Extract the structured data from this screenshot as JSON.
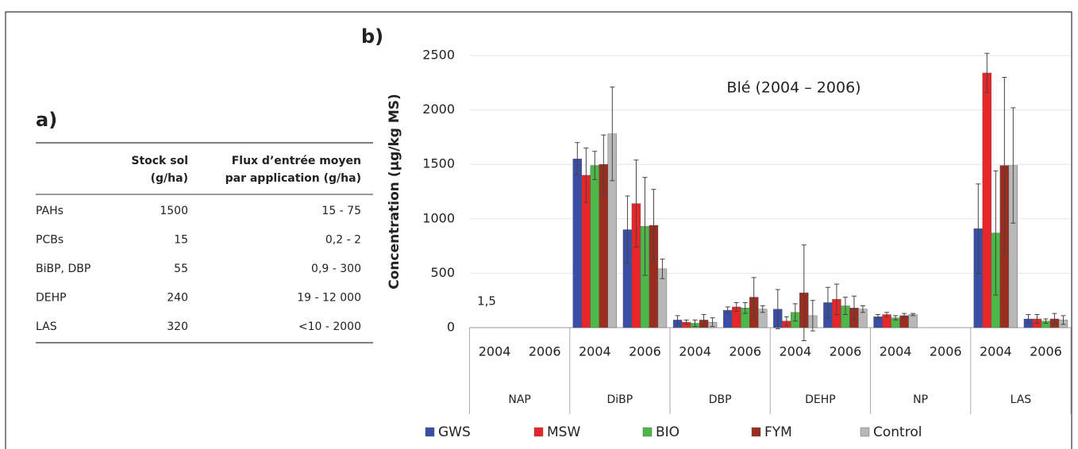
{
  "panel_a": {
    "label": "a)",
    "table": {
      "columns": [
        [
          "Stock sol",
          "(g/ha)"
        ],
        [
          "Flux d’entrée moyen",
          "par application (g/ha)"
        ]
      ],
      "rows": [
        [
          "PAHs",
          "1500",
          "15 - 75"
        ],
        [
          "PCBs",
          "15",
          "0,2 - 2"
        ],
        [
          "BiBP, DBP",
          "55",
          "0,9 - 300"
        ],
        [
          "DEHP",
          "240",
          "19 - 12 000"
        ],
        [
          "LAS",
          "320",
          "<10 - 2000"
        ]
      ]
    }
  },
  "chart_data": {
    "type": "bar",
    "panel_label": "b)",
    "annotation": "Blé (2004 – 2006)",
    "value_note": "1,5",
    "y_label": "Concentration (µg/kg MS)",
    "categories": [
      "2004",
      "2006",
      "2004",
      "2006",
      "2004",
      "2006",
      "2004",
      "2006",
      "2004",
      "2006",
      "2004",
      "2006"
    ],
    "groups": [
      "NAP",
      "DiBP",
      "DBP",
      "DEHP",
      "NP",
      "LAS"
    ],
    "ylim": [
      0,
      2500
    ],
    "yticks": [
      0,
      500,
      1000,
      1500,
      2000,
      2500
    ],
    "grid": true,
    "series": [
      {
        "name": "GWS",
        "color": "#3a4ea6",
        "values": [
          0,
          0,
          1550,
          900,
          70,
          160,
          170,
          230,
          100,
          0,
          910,
          80
        ],
        "errors": [
          0,
          0,
          150,
          310,
          40,
          30,
          180,
          140,
          20,
          0,
          410,
          40
        ]
      },
      {
        "name": "MSW",
        "color": "#e8262a",
        "values": [
          0,
          0,
          1400,
          1140,
          50,
          190,
          60,
          260,
          120,
          0,
          2340,
          80
        ],
        "errors": [
          0,
          0,
          250,
          400,
          20,
          40,
          40,
          140,
          20,
          0,
          180,
          40
        ]
      },
      {
        "name": "BIO",
        "color": "#4cb848",
        "values": [
          0,
          0,
          1490,
          930,
          40,
          180,
          140,
          200,
          90,
          0,
          870,
          60
        ],
        "errors": [
          0,
          0,
          130,
          450,
          30,
          50,
          80,
          80,
          20,
          0,
          570,
          20
        ]
      },
      {
        "name": "FYM",
        "color": "#9a2d1f",
        "values": [
          0,
          0,
          1500,
          940,
          70,
          280,
          320,
          180,
          110,
          0,
          1490,
          80
        ],
        "errors": [
          0,
          0,
          270,
          330,
          50,
          180,
          440,
          110,
          20,
          0,
          810,
          50
        ]
      },
      {
        "name": "Control",
        "color": "#b8b8b8",
        "values": [
          0,
          0,
          1780,
          540,
          50,
          170,
          110,
          170,
          120,
          0,
          1490,
          70
        ],
        "errors": [
          0,
          0,
          430,
          90,
          40,
          30,
          140,
          30,
          10,
          0,
          530,
          40
        ]
      }
    ]
  }
}
